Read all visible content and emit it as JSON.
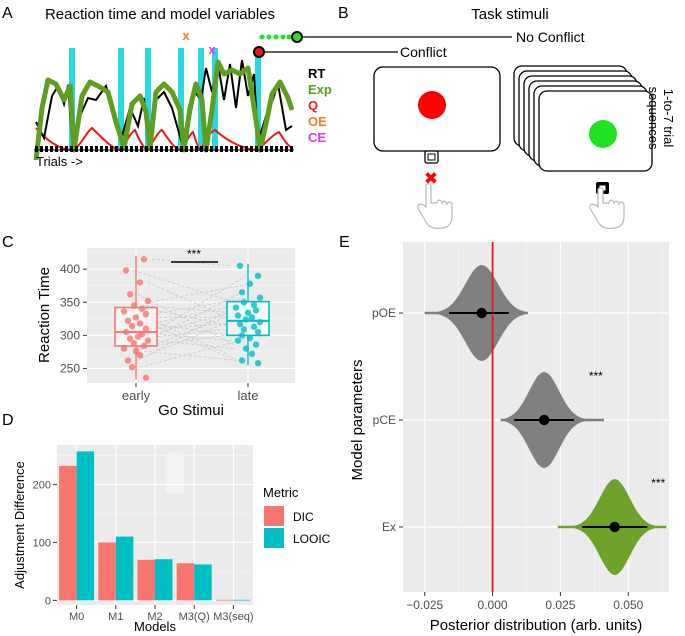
{
  "figure": {
    "panel_a": {
      "letter": "A",
      "title": "Reaction time and  model variables",
      "x_caption": "Trials ->",
      "legend": [
        {
          "label": "RT",
          "color": "#000000"
        },
        {
          "label": "Exp",
          "color": "#5e9e20"
        },
        {
          "label": "Q",
          "color": "#e8191d"
        },
        {
          "label": "OE",
          "color": "#f07a1e"
        },
        {
          "label": "CE",
          "color": "#d83ce6"
        }
      ],
      "markers": {
        "oe": "x",
        "ce": "x"
      },
      "colors": {
        "stimulus_bars": "#29d8e4",
        "exp": "#5e9e20",
        "rt": "#000000",
        "q": "#e8191d",
        "oe": "#f07a1e",
        "ce": "#d83ce6"
      }
    },
    "panel_b": {
      "letter": "B",
      "title": "Task stimuli",
      "no_conflict_label": "No Conflict",
      "conflict_label": "Conflict",
      "sequence_label_line1": "1-to-7 trial",
      "sequence_label_line2": "sequences",
      "colors": {
        "conflict_stimulus": "#ff0000",
        "no_conflict_stimulus": "#22e022",
        "cross": "#ff0000"
      }
    },
    "panel_c": {
      "letter": "C",
      "chart_data": {
        "type": "box",
        "title": "",
        "xlabel": "Go Stimui",
        "ylabel": "Reaction Time",
        "categories": [
          "early",
          "late"
        ],
        "ylim": [
          228,
          432
        ],
        "yticks": [
          250,
          300,
          350,
          400
        ],
        "significance": "***",
        "colors": [
          "#f8766d",
          "#00bfc4"
        ],
        "boxes": [
          {
            "name": "early",
            "min": 233,
            "q1": 284,
            "median": 305,
            "q3": 342,
            "max": 420
          },
          {
            "name": "late",
            "min": 255,
            "q1": 300,
            "median": 322,
            "q3": 351,
            "max": 408
          }
        ],
        "points": [
          {
            "name": "early",
            "values": [
              415,
              398,
              380,
              362,
              352,
              345,
              340,
              336,
              332,
              327,
              322,
              318,
              314,
              310,
              305,
              302,
              298,
              295,
              292,
              288,
              284,
              280,
              276,
              270,
              262,
              252,
              236
            ]
          },
          {
            "name": "late",
            "values": [
              405,
              390,
              378,
              365,
              357,
              350,
              346,
              342,
              338,
              334,
              330,
              327,
              324,
              320,
              317,
              313,
              309,
              305,
              300,
              296,
              292,
              286,
              280,
              272,
              262,
              258
            ]
          }
        ]
      }
    },
    "panel_d": {
      "letter": "D",
      "chart_data": {
        "type": "bar",
        "title": "",
        "xlabel": "Models",
        "ylabel": "Adjustment Difference",
        "categories": [
          "M0",
          "M1",
          "M2",
          "M3(Q)",
          "M3(seq)"
        ],
        "ylim": [
          -8,
          268
        ],
        "yticks": [
          0,
          100,
          200
        ],
        "legend_title": "Metric",
        "series": [
          {
            "name": "DIC",
            "color": "#f8766d",
            "values": [
              232,
              100,
              70,
              64,
              1
            ]
          },
          {
            "name": "LOOIC",
            "color": "#00bfc4",
            "values": [
              257,
              110,
              71,
              62,
              1
            ]
          }
        ]
      }
    },
    "panel_e": {
      "letter": "E",
      "chart_data": {
        "type": "violin",
        "title": "",
        "xlabel": "Posterior distribution (arb. units)",
        "ylabel": "Model parameters",
        "categories": [
          "pOE",
          "pCE",
          "Ex"
        ],
        "xlim": [
          -0.033,
          0.065
        ],
        "xticks": [
          -0.025,
          0.0,
          0.025,
          0.05
        ],
        "xtick_labels": [
          "−0.025",
          "0.000",
          "0.025",
          "0.050"
        ],
        "reference_line": 0.0,
        "reference_color": "#e8191d",
        "distributions": [
          {
            "name": "pOE",
            "mean": -0.004,
            "ci": [
              -0.016,
              0.006
            ],
            "min": -0.025,
            "max": 0.013,
            "sd": 0.006,
            "color": "#808080",
            "significance": ""
          },
          {
            "name": "pCE",
            "mean": 0.019,
            "ci": [
              0.008,
              0.03
            ],
            "min": 0.003,
            "max": 0.041,
            "sd": 0.0055,
            "color": "#808080",
            "significance": "***"
          },
          {
            "name": "Ex",
            "mean": 0.045,
            "ci": [
              0.033,
              0.057
            ],
            "min": 0.024,
            "max": 0.064,
            "sd": 0.0055,
            "color": "#6ea22b",
            "significance": "***"
          }
        ]
      }
    }
  }
}
